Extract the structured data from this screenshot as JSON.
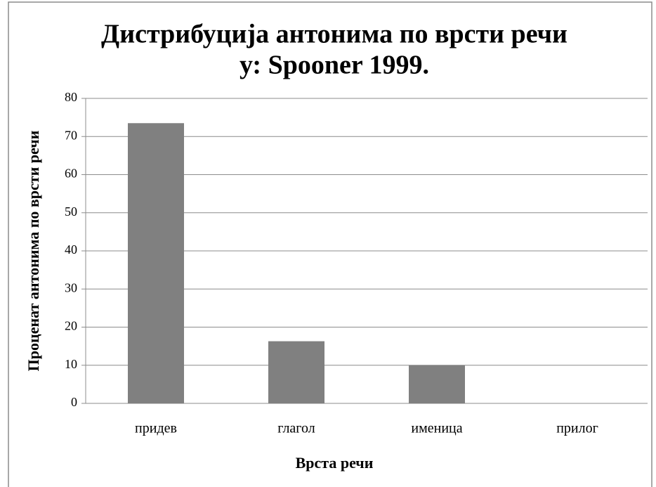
{
  "chart_data": {
    "type": "bar",
    "title": [
      "Дистрибуција антонима по врсти речи",
      "у: Spooner 1999."
    ],
    "x_label": "Врста речи",
    "y_label": "Проценат антонима по врсти речи",
    "categories": [
      "придев",
      "глагол",
      "именица",
      "прилог"
    ],
    "values": [
      73.5,
      16.3,
      10,
      0
    ],
    "color": "#808080",
    "ylim": [
      0,
      80
    ],
    "yticks": [
      0,
      10,
      20,
      30,
      40,
      50,
      60,
      70,
      80
    ],
    "grid": true
  }
}
